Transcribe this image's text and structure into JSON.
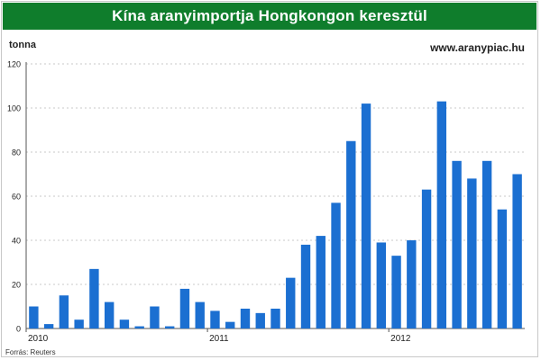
{
  "header": {
    "title": "Kína aranyimportja Hongkongon keresztül",
    "unit": "tonna",
    "site": "www.aranypiac.hu",
    "source": "Forrás: Reuters"
  },
  "colors": {
    "title_bar": "#0f7d2c",
    "bar": "#1b6fd1",
    "grid": "#c9c9c9"
  },
  "chart_data": {
    "type": "bar",
    "title": "Kína aranyimportja Hongkongon keresztül",
    "ylabel": "tonna",
    "ylim": [
      0,
      120
    ],
    "yticks": [
      0,
      20,
      40,
      60,
      80,
      100,
      120
    ],
    "year_labels": [
      {
        "label": "2010",
        "index": 0
      },
      {
        "label": "2011",
        "index": 12
      },
      {
        "label": "2012",
        "index": 24
      }
    ],
    "grid": true,
    "values": [
      10,
      2,
      15,
      4,
      27,
      12,
      4,
      1,
      10,
      1,
      18,
      12,
      8,
      3,
      9,
      7,
      9,
      23,
      38,
      42,
      57,
      85,
      102,
      39,
      33,
      40,
      63,
      103,
      76,
      68,
      76,
      54,
      70
    ]
  }
}
